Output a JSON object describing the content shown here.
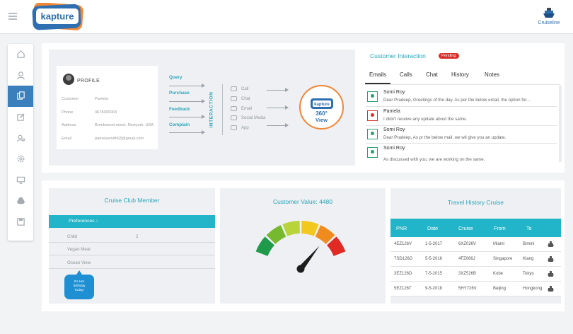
{
  "header": {
    "brand": "kapture",
    "account_name": "Cruiseline"
  },
  "sidebar": {
    "items": [
      {
        "icon": "home-icon"
      },
      {
        "icon": "user-icon"
      },
      {
        "icon": "documents-icon",
        "active": true
      },
      {
        "icon": "edit-icon"
      },
      {
        "icon": "users-icon"
      },
      {
        "icon": "settings-icon"
      },
      {
        "icon": "monitor-icon"
      },
      {
        "icon": "drive-icon"
      },
      {
        "icon": "save-icon"
      }
    ]
  },
  "profile": {
    "title": "PROFILE",
    "rows": [
      {
        "key": "Customer",
        "value": "Pamela"
      },
      {
        "key": "Phone",
        "value": "4678300003"
      },
      {
        "key": "Address",
        "value": "Brookwood street, Newyork, USA"
      },
      {
        "key": "Email",
        "value": "pamelasmith93@gmail.com"
      }
    ]
  },
  "flow": {
    "stages": [
      "Query",
      "Purchase",
      "Feedback",
      "Complain"
    ],
    "interaction_label": "INTERACTION",
    "channels": [
      "Call",
      "Chat",
      "Email",
      "Social Media",
      "App"
    ],
    "center_brand": "kapture",
    "center_line1": "360°",
    "center_line2": "View"
  },
  "customer_interaction": {
    "title": "Customer Interaction",
    "status": "Pending",
    "tabs": [
      "Emails",
      "Calls",
      "Chat",
      "History",
      "Notes"
    ],
    "active_tab": "Emails",
    "messages": [
      {
        "from": "Somi Roy",
        "text": "Dear Pradeep, Greetings of the day. As per the below email, the option for...",
        "side": "agent"
      },
      {
        "from": "Pamela",
        "text": "I didn't receive any update about the same.",
        "side": "customer"
      },
      {
        "from": "Somi Roy",
        "text": "Dear Pradeep, As pr the below mail, we wil give you an update.",
        "side": "agent"
      },
      {
        "from": "Somi Roy",
        "text": "As discussed with you, we are working on the same.",
        "side": "agent"
      }
    ]
  },
  "cruise_club": {
    "title": "Cruise Club Member",
    "preferences_label": "Preferences :-",
    "rows": [
      {
        "label": "Child",
        "value": "2"
      },
      {
        "label": "Vegan Meal",
        "value": ""
      },
      {
        "label": "Ocean View",
        "value": ""
      }
    ],
    "bubble": [
      "It's Her",
      "Birthday",
      "Today!"
    ]
  },
  "customer_value": {
    "label": "Customer Value:",
    "value": "4480",
    "gauge_fraction": 0.78,
    "colors": [
      "#1f9a4a",
      "#76b82e",
      "#b8d43a",
      "#f2c81e",
      "#f08c1e",
      "#e02a23"
    ]
  },
  "travel_history": {
    "title": "Travel History Cruise",
    "columns": [
      "PNR",
      "Date",
      "Cruise",
      "From",
      "To"
    ],
    "rows": [
      {
        "pnr": "4EZ126V",
        "date": "1-5-2017",
        "cruise": "6XZ026V",
        "from": "Miami",
        "to": "Bimini"
      },
      {
        "pnr": "7SD126G",
        "date": "5-5-2016",
        "cruise": "4FZ066J",
        "from": "Singapore",
        "to": "Klang"
      },
      {
        "pnr": "3EZ126D",
        "date": "7-5-2015",
        "cruise": "3XZ526B",
        "from": "Kobe",
        "to": "Tokyo"
      },
      {
        "pnr": "5EZ126T",
        "date": "9-5-2018",
        "cruise": "5HY726V",
        "from": "Beijing",
        "to": "Hongkong"
      }
    ]
  }
}
